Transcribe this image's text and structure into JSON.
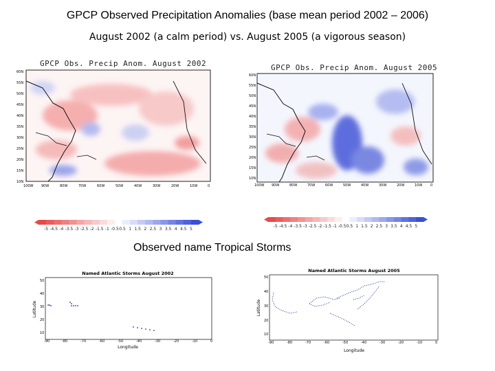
{
  "title": "GPCP Observed Precipitation Anomalies (base mean period 2002 – 2006)",
  "subtitle": "August 2002 (a calm period)   vs. August 2005 (a vigorous season)",
  "maps": [
    {
      "title": "GPCP Obs. Precip  Anom. August 2002",
      "lat_labels": [
        "60N",
        "55N",
        "50N",
        "45N",
        "40N",
        "35N",
        "30N",
        "25N",
        "20N",
        "15N",
        "10N"
      ],
      "lon_labels": [
        "100W",
        "90W",
        "80W",
        "70W",
        "60W",
        "50W",
        "40W",
        "30W",
        "20W",
        "10W",
        "0"
      ]
    },
    {
      "title": "GPCP Obs. Precip  Anom. August 2005",
      "lat_labels": [
        "60N",
        "55N",
        "50N",
        "45N",
        "40N",
        "35N",
        "30N",
        "25N",
        "20N",
        "15N",
        "10N"
      ],
      "lon_labels": [
        "100W",
        "90W",
        "80W",
        "70W",
        "60W",
        "50W",
        "40W",
        "30W",
        "20W",
        "10W",
        "0"
      ]
    }
  ],
  "colorbars": [
    {
      "labels": [
        "-5",
        "-4.5",
        "-4",
        "-3.5",
        "-3",
        "-2.5",
        "-2",
        "-1.5",
        "-1",
        "-0.5",
        "0.5",
        "1",
        "1.5",
        "2",
        "2.5",
        "3",
        "3.5",
        "4",
        "4.5",
        "5"
      ]
    },
    {
      "labels": [
        "-5",
        "-4.5",
        "-4",
        "-3.5",
        "-3",
        "-2.5",
        "-2",
        "-1.5",
        "-1",
        "-0.5",
        "0.5",
        "1",
        "1.5",
        "2",
        "2.5",
        "3",
        "3.5",
        "4",
        "4.5",
        "5"
      ]
    }
  ],
  "storms_heading": "Observed name Tropical Storms",
  "storm_plots": [
    {
      "title": "Named Atlantic Storms August 2002",
      "xlabel": "Longitude",
      "ylabel": "Latitude",
      "x_ticks": [
        "-90",
        "-80",
        "-70",
        "-60",
        "-50",
        "-40",
        "-30",
        "-20",
        "-10",
        "0"
      ],
      "y_ticks": [
        "10",
        "20",
        "30",
        "40",
        "50"
      ]
    },
    {
      "title": "Named Atlantic Storms August 2005",
      "xlabel": "Longitude",
      "ylabel": "Latitude",
      "x_ticks": [
        "-90",
        "-80",
        "-70",
        "-60",
        "-50",
        "-40",
        "-30",
        "-20",
        "-10",
        "0"
      ],
      "y_ticks": [
        "10",
        "20",
        "30",
        "40",
        "50"
      ]
    }
  ],
  "colors": {
    "positive": "#e84a4a",
    "negative": "#3a4fd8",
    "track": "#2233aa"
  }
}
